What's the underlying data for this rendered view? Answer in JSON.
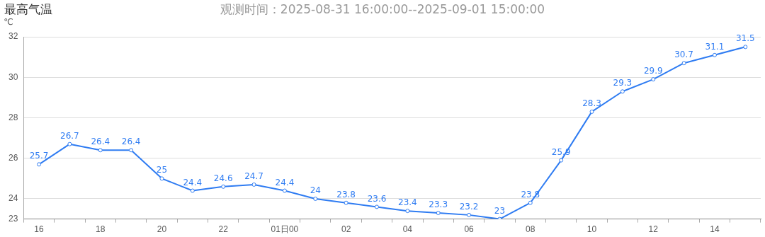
{
  "chart_data": {
    "type": "line",
    "title": "最高气温",
    "subtitle": "观测时间：2025-08-31 16:00:00--2025-09-01 15:00:00",
    "ylabel": "℃",
    "categories": [
      "16",
      null,
      "18",
      null,
      "20",
      null,
      "22",
      null,
      "01日00",
      null,
      "02",
      null,
      "04",
      null,
      "06",
      null,
      "08",
      null,
      "10",
      null,
      "12",
      null,
      "14",
      null
    ],
    "series": [
      {
        "color": "#2f7cf2",
        "values": [
          25.7,
          26.7,
          26.4,
          26.4,
          25,
          24.4,
          24.6,
          24.7,
          24.4,
          24,
          23.8,
          23.6,
          23.4,
          23.3,
          23.2,
          23,
          23.8,
          25.9,
          28.3,
          29.3,
          29.9,
          30.7,
          31.1,
          31.5
        ]
      }
    ],
    "ylim": [
      23,
      32
    ],
    "yticks": [
      23,
      24,
      26,
      28,
      30,
      32
    ],
    "grid": "y",
    "data_labels": true,
    "marker": "circle"
  }
}
